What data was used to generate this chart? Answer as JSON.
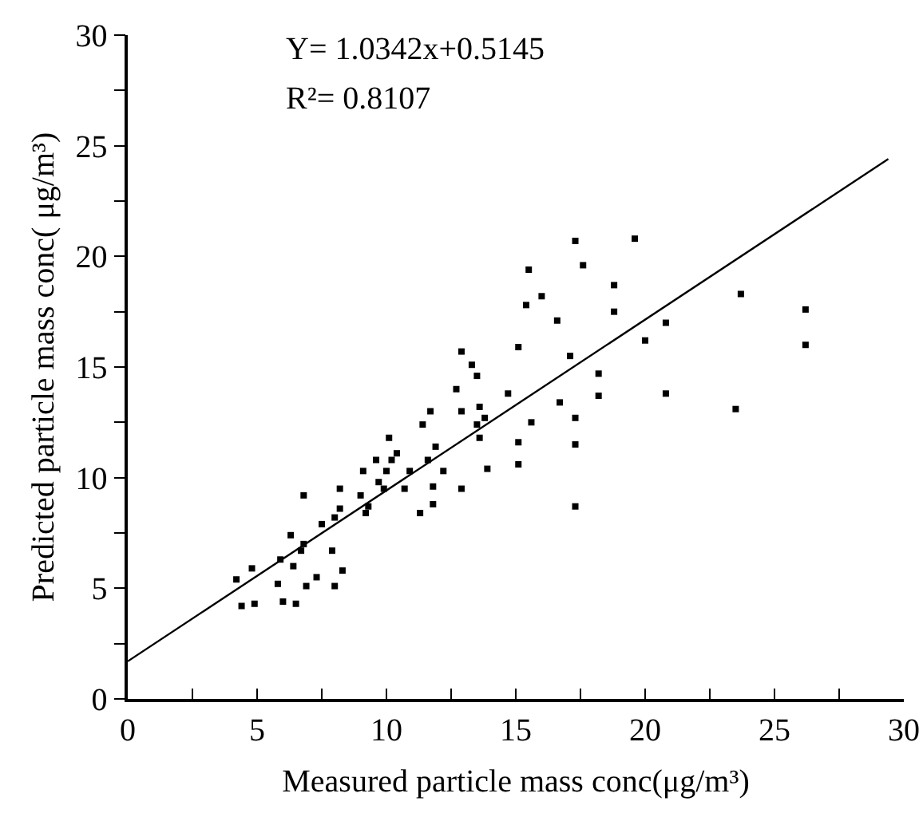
{
  "chart_data": {
    "type": "scatter",
    "xlabel": "Measured particle mass conc(μg/m³)",
    "ylabel": "Predicted particle mass conc( μg/m³)",
    "annotations": [
      "Y= 1.0342x+0.5145",
      "R²= 0.8107"
    ],
    "xlim": [
      0,
      30
    ],
    "ylim": [
      0,
      30
    ],
    "xticks": [
      0,
      {
        "value": 2.5,
        "label": null
      },
      5,
      {
        "value": 7.5,
        "label": null
      },
      10,
      {
        "value": 12.5,
        "label": null
      },
      15,
      {
        "value": 17.5,
        "label": null
      },
      20,
      {
        "value": 22.5,
        "label": null
      },
      25,
      {
        "value": 27.5,
        "label": null
      },
      30
    ],
    "yticks": [
      0,
      {
        "value": 2.5,
        "label": null
      },
      5,
      {
        "value": 7.5,
        "label": null
      },
      10,
      {
        "value": 12.5,
        "label": null
      },
      15,
      {
        "value": 17.5,
        "label": null
      },
      20,
      {
        "value": 22.5,
        "label": null
      },
      25,
      {
        "value": 27.5,
        "label": null
      },
      30
    ],
    "grid": false,
    "marker": "square",
    "series": [
      {
        "color": "#000000",
        "x": [
          4.2,
          4.8,
          4.9,
          4.4,
          5.9,
          5.8,
          6.0,
          6.5,
          6.4,
          6.7,
          6.8,
          6.8,
          6.3,
          6.9,
          7.3,
          7.5,
          7.9,
          8.0,
          8.2,
          8.0,
          8.2,
          8.3,
          9.0,
          9.1,
          9.2,
          9.3,
          9.6,
          9.7,
          9.9,
          10.0,
          10.1,
          10.2,
          10.4,
          10.7,
          10.9,
          11.3,
          11.4,
          11.6,
          11.8,
          11.8,
          11.9,
          11.7,
          12.2,
          12.9,
          12.9,
          12.7,
          12.9,
          13.3,
          13.5,
          13.6,
          13.5,
          13.8,
          13.6,
          13.9,
          14.7,
          15.1,
          15.1,
          15.1,
          15.4,
          15.5,
          15.6,
          16.0,
          16.6,
          16.7,
          17.1,
          17.3,
          17.3,
          17.3,
          17.3,
          17.6,
          18.2,
          18.2,
          18.8,
          18.8,
          19.6,
          20.0,
          20.8,
          20.8,
          23.5,
          23.7,
          26.2,
          26.2
        ],
        "values": [
          5.4,
          5.9,
          4.3,
          4.2,
          6.3,
          5.2,
          4.4,
          4.3,
          6.0,
          6.7,
          7.0,
          9.2,
          7.4,
          5.1,
          5.5,
          7.9,
          6.7,
          8.2,
          8.6,
          5.1,
          9.5,
          5.8,
          9.2,
          10.3,
          8.4,
          8.7,
          10.8,
          9.8,
          9.5,
          10.3,
          11.8,
          10.8,
          11.1,
          9.5,
          10.3,
          8.4,
          12.4,
          10.8,
          8.8,
          9.6,
          11.4,
          13.0,
          10.3,
          9.5,
          15.7,
          14.0,
          13.0,
          15.1,
          14.6,
          13.2,
          12.4,
          12.7,
          11.8,
          10.4,
          13.8,
          11.6,
          10.6,
          15.9,
          17.8,
          19.4,
          12.5,
          18.2,
          17.1,
          13.4,
          15.5,
          12.7,
          11.5,
          8.7,
          20.7,
          19.6,
          14.7,
          13.7,
          18.7,
          17.5,
          20.8,
          16.2,
          17.0,
          13.8,
          13.1,
          18.3,
          17.6,
          16.0
        ]
      },
      {
        "type": "line",
        "color": "#000000",
        "marker": "none",
        "x": [
          0,
          29.4
        ],
        "values": [
          1.7,
          24.4
        ]
      }
    ]
  }
}
